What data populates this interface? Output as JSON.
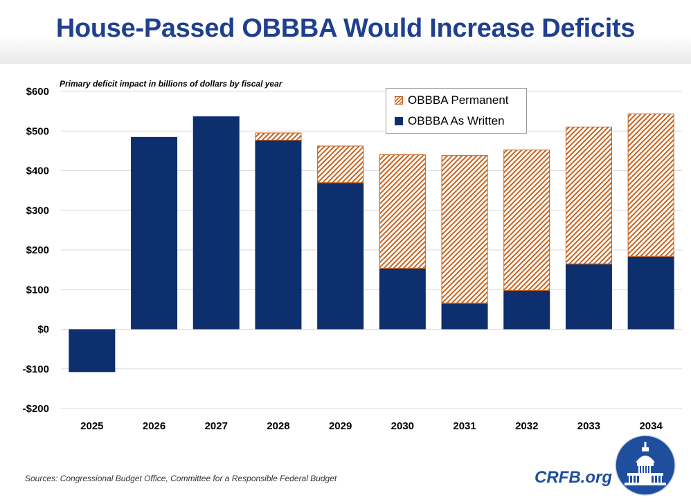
{
  "title": "House-Passed OBBBA Would Increase Deficits",
  "sources": "Sources: Congressional Budget Office, Committee for a Responsible Federal Budget",
  "brand": "CRFB.org",
  "colors": {
    "as_written": "#0d2f6e",
    "permanent_hatch": "#c55a11",
    "title": "#1f3f8f"
  },
  "chart_data": {
    "type": "bar",
    "stacked": true,
    "title": "House-Passed OBBBA Would Increase Deficits",
    "subtitle": "Primary deficit impact in billions of dollars by fiscal year",
    "xlabel": "",
    "ylabel": "",
    "categories": [
      "2025",
      "2026",
      "2027",
      "2028",
      "2029",
      "2030",
      "2031",
      "2032",
      "2033",
      "2034"
    ],
    "series": [
      {
        "name": "OBBBA As Written",
        "values": [
          -108,
          485,
          537,
          476,
          369,
          153,
          65,
          97,
          164,
          183
        ]
      },
      {
        "name": "OBBBA Permanent",
        "values": [
          0,
          0,
          0,
          20,
          94,
          288,
          374,
          356,
          347,
          361
        ]
      }
    ],
    "totals": [
      -108,
      485,
      537,
      496,
      463,
      441,
      439,
      453,
      511,
      544
    ],
    "ylim": [
      -200,
      600
    ],
    "yticks": [
      600,
      500,
      400,
      300,
      200,
      100,
      0,
      -100,
      -200
    ],
    "ytick_labels": [
      "$600",
      "$500",
      "$400",
      "$300",
      "$200",
      "$100",
      "$0",
      "-$100",
      "-$200"
    ],
    "legend": [
      "OBBBA Permanent",
      "OBBBA As Written"
    ],
    "legend_position": "top-right",
    "grid": true
  }
}
